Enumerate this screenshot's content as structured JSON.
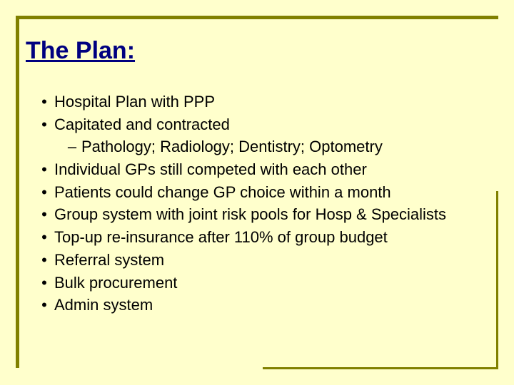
{
  "colors": {
    "background": "#ffffcc",
    "accent_line": "#808000",
    "title_color": "#000080",
    "text_color": "#000000"
  },
  "typography": {
    "font_family": "Comic Sans MS",
    "title_fontsize": 34,
    "body_fontsize": 22,
    "title_weight": "bold"
  },
  "title": "The Plan:",
  "bullets": [
    {
      "text": "Hospital Plan with PPP",
      "sub": []
    },
    {
      "text": "Capitated and contracted",
      "sub": [
        {
          "text": "Pathology; Radiology; Dentistry; Optometry"
        }
      ]
    },
    {
      "text": "Individual GPs still competed with each other",
      "sub": []
    },
    {
      "text": "Patients could change GP choice within a month",
      "sub": []
    },
    {
      "text": "Group system with joint risk pools for Hosp & Specialists",
      "sub": []
    },
    {
      "text": "Top-up re-insurance after 110% of group budget",
      "sub": []
    },
    {
      "text": "Referral system",
      "sub": []
    },
    {
      "text": "Bulk procurement",
      "sub": []
    },
    {
      "text": "Admin system",
      "sub": []
    }
  ]
}
